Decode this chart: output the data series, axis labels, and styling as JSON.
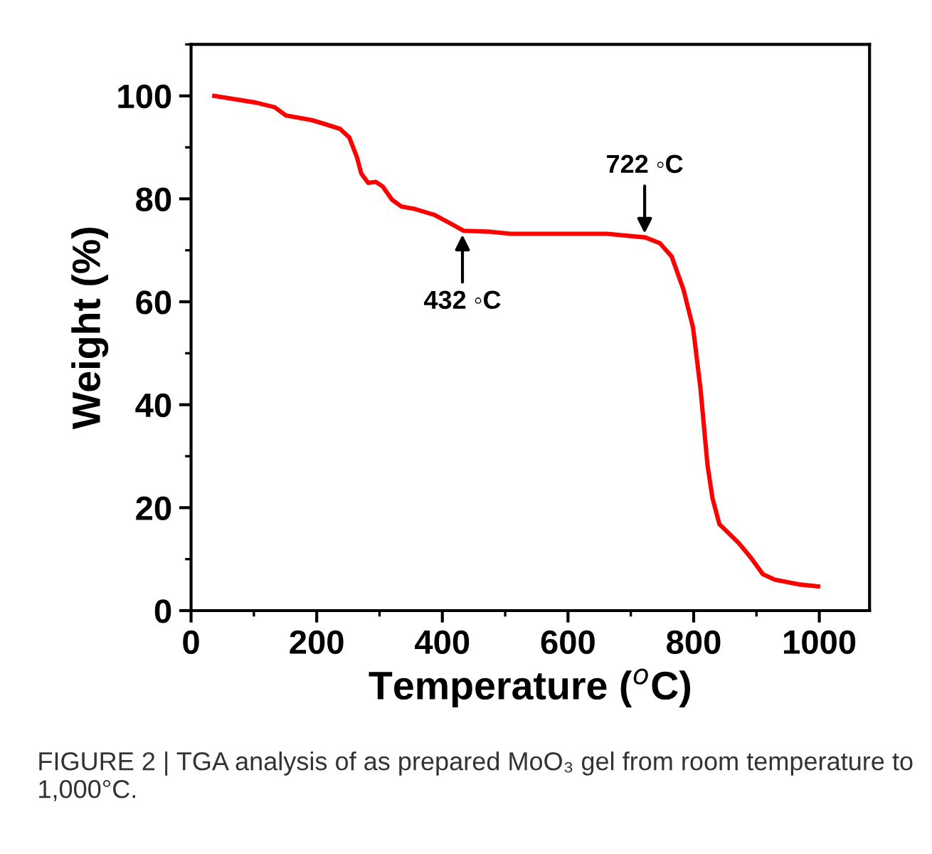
{
  "chart_data": {
    "type": "line",
    "xlabel": "Temperature ($^{o}$C)",
    "ylabel": "Weight (%)",
    "x": [
      37,
      103,
      133,
      151,
      192,
      211,
      237,
      252,
      264,
      271,
      282,
      294,
      305,
      320,
      335,
      357,
      387,
      410,
      434,
      477,
      509,
      552,
      662,
      723,
      746,
      765,
      784,
      799,
      811,
      822,
      830,
      841,
      872,
      891,
      910,
      929,
      967,
      998
    ],
    "series": [
      {
        "color": "#ff0000",
        "values": [
          100,
          98.7,
          97.8,
          96.2,
          95.3,
          94.6,
          93.6,
          91.9,
          88.1,
          84.9,
          83.1,
          83.3,
          82.4,
          79.8,
          78.5,
          78.0,
          76.9,
          75.4,
          73.8,
          73.6,
          73.2,
          73.2,
          73.2,
          72.5,
          71.4,
          68.8,
          62.3,
          55.0,
          43.0,
          28.3,
          21.8,
          16.8,
          13.1,
          10.3,
          7.1,
          6.0,
          5.1,
          4.7
        ]
      }
    ],
    "xlim": [
      0,
      1080
    ],
    "ylim": [
      0,
      110
    ],
    "xticks": [
      0,
      200,
      400,
      600,
      800,
      1000
    ],
    "yticks": [
      0,
      20,
      40,
      60,
      80,
      100
    ],
    "grid": false,
    "legend": false,
    "marker": "none",
    "line_style": "solid",
    "annotations": [
      {
        "text": "432 ◦C",
        "x": 432,
        "y": 73.8
      },
      {
        "text": "722 ◦C",
        "x": 722,
        "y": 72.5
      },
      "FIGURE 2 | TGA analysis of as prepared MoO₃ gel from room temperature to 1,000°C."
    ]
  }
}
